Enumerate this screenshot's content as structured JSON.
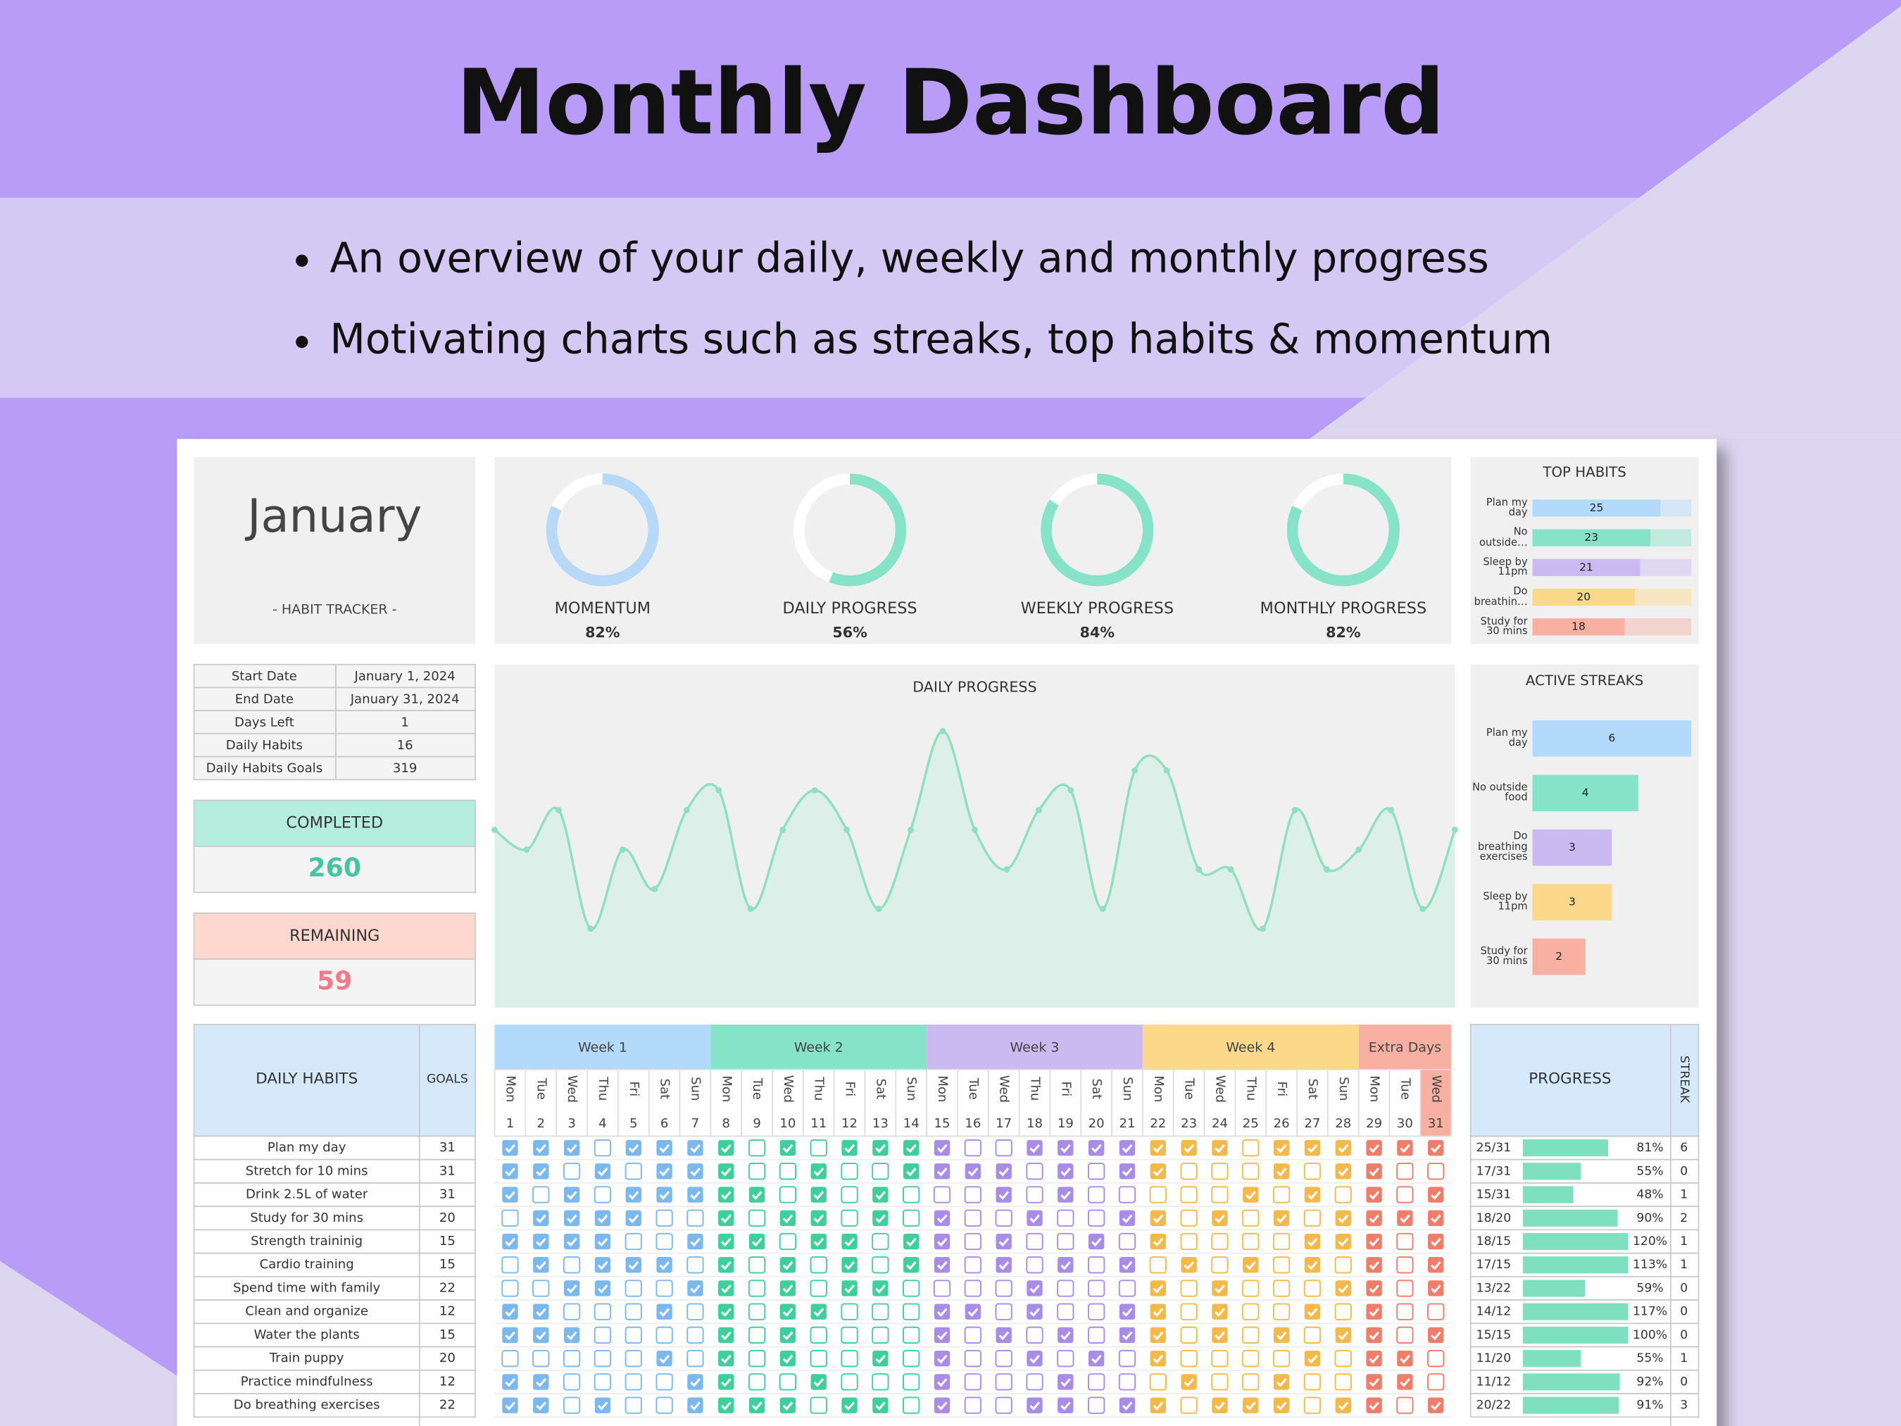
{
  "header": {
    "title": "Monthly Dashboard",
    "bullets": [
      "An overview of your daily, weekly and monthly progress",
      "Motivating charts such as streaks, top habits & momentum"
    ]
  },
  "month": {
    "name": "January",
    "subtitle": "- HABIT TRACKER -"
  },
  "gauges": [
    {
      "label": "MOMENTUM",
      "value": 82,
      "value_label": "82%",
      "color": "#b7d8f7"
    },
    {
      "label": "DAILY PROGRESS",
      "value": 56,
      "value_label": "56%",
      "color": "#86e3c7"
    },
    {
      "label": "WEEKLY PROGRESS",
      "value": 84,
      "value_label": "84%",
      "color": "#86e3c7"
    },
    {
      "label": "MONTHLY PROGRESS",
      "value": 82,
      "value_label": "82%",
      "color": "#86e3c7"
    }
  ],
  "top_habits": {
    "title": "TOP HABITS",
    "xlim": [
      0,
      31
    ],
    "items": [
      {
        "label": "Plan my day",
        "value": 25,
        "color": "#b3d9fb"
      },
      {
        "label": "No outside…",
        "value": 23,
        "color": "#86e3c7"
      },
      {
        "label": "Sleep by 11pm",
        "value": 21,
        "color": "#cbb9f2"
      },
      {
        "label": "Do breathin…",
        "value": 20,
        "color": "#fcd98a"
      },
      {
        "label": "Study for 30 mins",
        "value": 18,
        "color": "#f7b0a2"
      }
    ]
  },
  "streaks": {
    "title": "ACTIVE STREAKS",
    "xlim": [
      0,
      6
    ],
    "items": [
      {
        "label": "Plan my day",
        "value": 6,
        "color": "#b3d9fb"
      },
      {
        "label": "No outside food",
        "value": 4,
        "color": "#86e3c7"
      },
      {
        "label": "Do breathing exercises",
        "value": 3,
        "color": "#cbb9f2"
      },
      {
        "label": "Sleep by 11pm",
        "value": 3,
        "color": "#fcd98a"
      },
      {
        "label": "Study for 30 mins",
        "value": 2,
        "color": "#f7b0a2"
      }
    ]
  },
  "info": {
    "rows": [
      [
        "Start Date",
        "January 1, 2024"
      ],
      [
        "End Date",
        "January 31, 2024"
      ],
      [
        "Days Left",
        1
      ],
      [
        "Daily Habits",
        16
      ],
      [
        "Daily Habits Goals",
        319
      ]
    ]
  },
  "completed": {
    "label": "COMPLETED",
    "value": 260
  },
  "remaining": {
    "label": "REMAINING",
    "value": 59
  },
  "chart_data": {
    "type": "line",
    "title": "DAILY PROGRESS",
    "color": "#8fdfc0",
    "fill": "#dcefe8",
    "ylim": [
      0,
      17
    ],
    "values": [
      9,
      8,
      10,
      4,
      8,
      6,
      10,
      11,
      5,
      9,
      11,
      9,
      5,
      9,
      14,
      9,
      7,
      10,
      11,
      5,
      12,
      12,
      7,
      7,
      4,
      10,
      7,
      8,
      10,
      5,
      9
    ]
  },
  "weeks": [
    {
      "label": "Week 1",
      "color": "#b3d9fb",
      "check_color": "#7ab8ee"
    },
    {
      "label": "Week 2",
      "color": "#86e3c7",
      "check_color": "#3fcf9a"
    },
    {
      "label": "Week 3",
      "color": "#cbb9f2",
      "check_color": "#a98be8"
    },
    {
      "label": "Week 4",
      "color": "#fcd98a",
      "check_color": "#f5b94a"
    },
    {
      "label": "Extra Days",
      "color": "#f7b0a2",
      "check_color": "#ef7d6a"
    }
  ],
  "weekdays": [
    "Mon",
    "Tue",
    "Wed",
    "Thu",
    "Fri",
    "Sat",
    "Sun",
    "Mon",
    "Tue",
    "Wed",
    "Thu",
    "Fri",
    "Sat",
    "Sun",
    "Mon",
    "Tue",
    "Wed",
    "Thu",
    "Fri",
    "Sat",
    "Sun",
    "Mon",
    "Tue",
    "Wed",
    "Thu",
    "Fri",
    "Sat",
    "Sun",
    "Mon",
    "Tue",
    "Wed"
  ],
  "days": [
    1,
    2,
    3,
    4,
    5,
    6,
    7,
    8,
    9,
    10,
    11,
    12,
    13,
    14,
    15,
    16,
    17,
    18,
    19,
    20,
    21,
    22,
    23,
    24,
    25,
    26,
    27,
    28,
    29,
    30,
    31
  ],
  "habits": {
    "header": "DAILY HABITS",
    "goals_header": "GOALS",
    "progress_header": "PROGRESS",
    "streak_header": "STREAK",
    "rows": [
      {
        "name": "Plan my day",
        "goal": 31,
        "ratio": "25/31",
        "progress": 81,
        "progress_label": "81%",
        "streak": 6,
        "checks": [
          1,
          1,
          1,
          0,
          1,
          1,
          1,
          1,
          0,
          1,
          0,
          1,
          1,
          1,
          1,
          0,
          0,
          1,
          1,
          1,
          1,
          1,
          1,
          1,
          0,
          1,
          1,
          1,
          1,
          1,
          1
        ]
      },
      {
        "name": "Stretch for 10 mins",
        "goal": 31,
        "ratio": "17/31",
        "progress": 55,
        "progress_label": "55%",
        "streak": 0,
        "checks": [
          1,
          1,
          0,
          1,
          0,
          1,
          1,
          1,
          0,
          0,
          1,
          0,
          0,
          1,
          1,
          1,
          1,
          0,
          1,
          0,
          1,
          1,
          0,
          0,
          0,
          1,
          0,
          1,
          1,
          0,
          0
        ]
      },
      {
        "name": "Drink 2.5L of water",
        "goal": 31,
        "ratio": "15/31",
        "progress": 48,
        "progress_label": "48%",
        "streak": 1,
        "checks": [
          1,
          0,
          1,
          0,
          1,
          1,
          1,
          1,
          1,
          0,
          1,
          0,
          1,
          0,
          0,
          0,
          1,
          0,
          1,
          0,
          0,
          0,
          0,
          0,
          1,
          0,
          1,
          0,
          1,
          0,
          1
        ]
      },
      {
        "name": "Study for 30 mins",
        "goal": 20,
        "ratio": "18/20",
        "progress": 90,
        "progress_label": "90%",
        "streak": 2,
        "checks": [
          0,
          1,
          1,
          1,
          1,
          0,
          0,
          1,
          0,
          1,
          1,
          0,
          1,
          0,
          1,
          0,
          0,
          1,
          0,
          0,
          1,
          1,
          0,
          1,
          0,
          1,
          0,
          1,
          1,
          1,
          1
        ]
      },
      {
        "name": "Strength traininig",
        "goal": 15,
        "ratio": "18/15",
        "progress": 120,
        "progress_label": "120%",
        "streak": 1,
        "checks": [
          1,
          1,
          1,
          1,
          0,
          0,
          1,
          1,
          1,
          0,
          1,
          1,
          0,
          1,
          1,
          0,
          1,
          0,
          0,
          1,
          0,
          1,
          0,
          0,
          0,
          0,
          1,
          1,
          1,
          0,
          1
        ]
      },
      {
        "name": "Cardio training",
        "goal": 15,
        "ratio": "17/15",
        "progress": 113,
        "progress_label": "113%",
        "streak": 1,
        "checks": [
          0,
          1,
          0,
          1,
          1,
          1,
          0,
          1,
          0,
          1,
          0,
          1,
          0,
          1,
          1,
          0,
          1,
          0,
          1,
          0,
          1,
          0,
          1,
          0,
          1,
          0,
          1,
          0,
          1,
          0,
          1
        ]
      },
      {
        "name": "Spend time with family",
        "goal": 22,
        "ratio": "13/22",
        "progress": 59,
        "progress_label": "59%",
        "streak": 0,
        "checks": [
          0,
          0,
          1,
          1,
          0,
          0,
          1,
          1,
          0,
          1,
          0,
          1,
          1,
          0,
          0,
          0,
          0,
          1,
          0,
          0,
          0,
          1,
          0,
          1,
          0,
          0,
          0,
          1,
          1,
          0,
          1
        ]
      },
      {
        "name": "Clean and organize",
        "goal": 12,
        "ratio": "14/12",
        "progress": 117,
        "progress_label": "117%",
        "streak": 0,
        "checks": [
          1,
          1,
          0,
          0,
          0,
          1,
          0,
          1,
          0,
          1,
          1,
          0,
          0,
          0,
          1,
          1,
          0,
          1,
          0,
          0,
          1,
          1,
          0,
          1,
          0,
          0,
          1,
          0,
          1,
          0,
          0
        ]
      },
      {
        "name": "Water the plants",
        "goal": 15,
        "ratio": "15/15",
        "progress": 100,
        "progress_label": "100%",
        "streak": 0,
        "checks": [
          1,
          1,
          1,
          0,
          0,
          0,
          0,
          1,
          0,
          1,
          0,
          0,
          0,
          0,
          1,
          0,
          1,
          0,
          1,
          0,
          1,
          1,
          0,
          1,
          0,
          1,
          0,
          1,
          1,
          0,
          1
        ]
      },
      {
        "name": "Train puppy",
        "goal": 20,
        "ratio": "11/20",
        "progress": 55,
        "progress_label": "55%",
        "streak": 1,
        "checks": [
          0,
          0,
          0,
          0,
          0,
          1,
          0,
          1,
          0,
          1,
          0,
          0,
          1,
          0,
          1,
          0,
          0,
          1,
          0,
          1,
          0,
          1,
          0,
          0,
          0,
          0,
          1,
          0,
          1,
          1,
          0
        ]
      },
      {
        "name": "Practice mindfulness",
        "goal": 12,
        "ratio": "11/12",
        "progress": 92,
        "progress_label": "92%",
        "streak": 0,
        "checks": [
          1,
          1,
          0,
          0,
          0,
          0,
          1,
          1,
          0,
          0,
          1,
          0,
          0,
          0,
          1,
          0,
          0,
          0,
          1,
          0,
          0,
          0,
          1,
          0,
          0,
          1,
          0,
          0,
          1,
          1,
          0
        ]
      },
      {
        "name": "Do breathing exercises",
        "goal": 22,
        "ratio": "20/22",
        "progress": 91,
        "progress_label": "91%",
        "streak": 3,
        "checks": [
          1,
          1,
          0,
          1,
          0,
          0,
          1,
          1,
          1,
          1,
          0,
          1,
          1,
          0,
          1,
          0,
          0,
          1,
          1,
          0,
          1,
          1,
          0,
          1,
          1,
          1,
          0,
          1,
          1,
          0,
          1
        ]
      }
    ]
  }
}
